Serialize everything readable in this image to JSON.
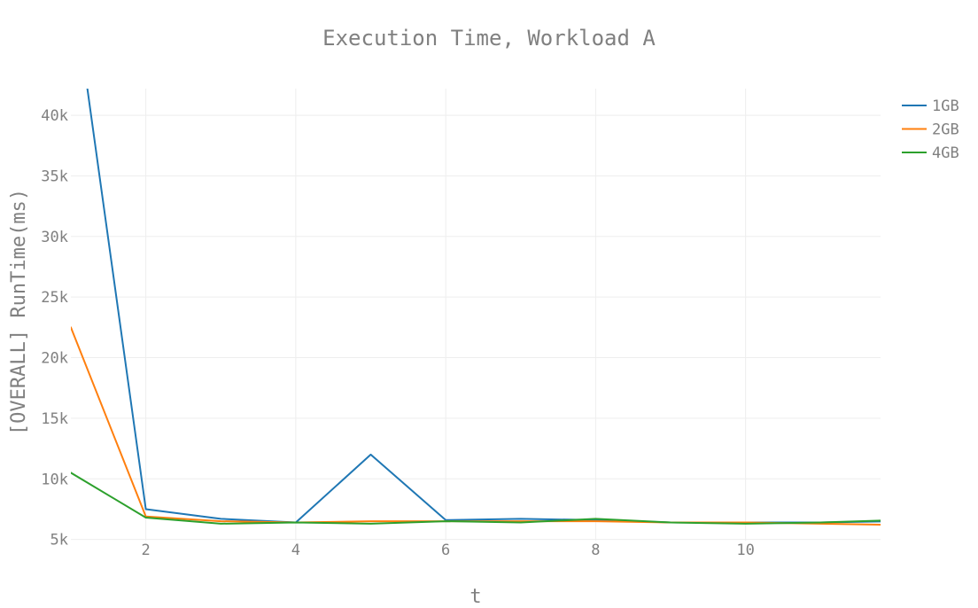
{
  "chart_data": {
    "type": "line",
    "title": "Execution Time, Workload A",
    "xlabel": "t",
    "ylabel": "[OVERALL] RunTime(ms)",
    "x": [
      1,
      2,
      3,
      4,
      5,
      6,
      7,
      8,
      9,
      10,
      11,
      12
    ],
    "xlim": [
      1,
      11.8
    ],
    "ylim": [
      4900,
      42200
    ],
    "x_ticks": [
      2,
      4,
      6,
      8,
      10
    ],
    "x_tick_labels": [
      "2",
      "4",
      "6",
      "8",
      "10"
    ],
    "y_ticks": [
      5000,
      10000,
      15000,
      20000,
      25000,
      30000,
      35000,
      40000
    ],
    "y_tick_labels": [
      "5k",
      "10k",
      "15k",
      "20k",
      "25k",
      "30k",
      "35k",
      "40k"
    ],
    "grid": true,
    "legend_position": "top-right",
    "series": [
      {
        "name": "1GB",
        "color": "#1f77b4",
        "values": [
          52000,
          7500,
          6700,
          6400,
          12000,
          6600,
          6700,
          6600,
          6400,
          6400,
          6400,
          6500
        ]
      },
      {
        "name": "2GB",
        "color": "#ff7f0e",
        "values": [
          22500,
          6900,
          6500,
          6400,
          6500,
          6500,
          6500,
          6500,
          6400,
          6400,
          6300,
          6200
        ]
      },
      {
        "name": "4GB",
        "color": "#2ca02c",
        "values": [
          10500,
          6800,
          6300,
          6400,
          6300,
          6500,
          6400,
          6700,
          6400,
          6300,
          6400,
          6600
        ]
      }
    ]
  }
}
